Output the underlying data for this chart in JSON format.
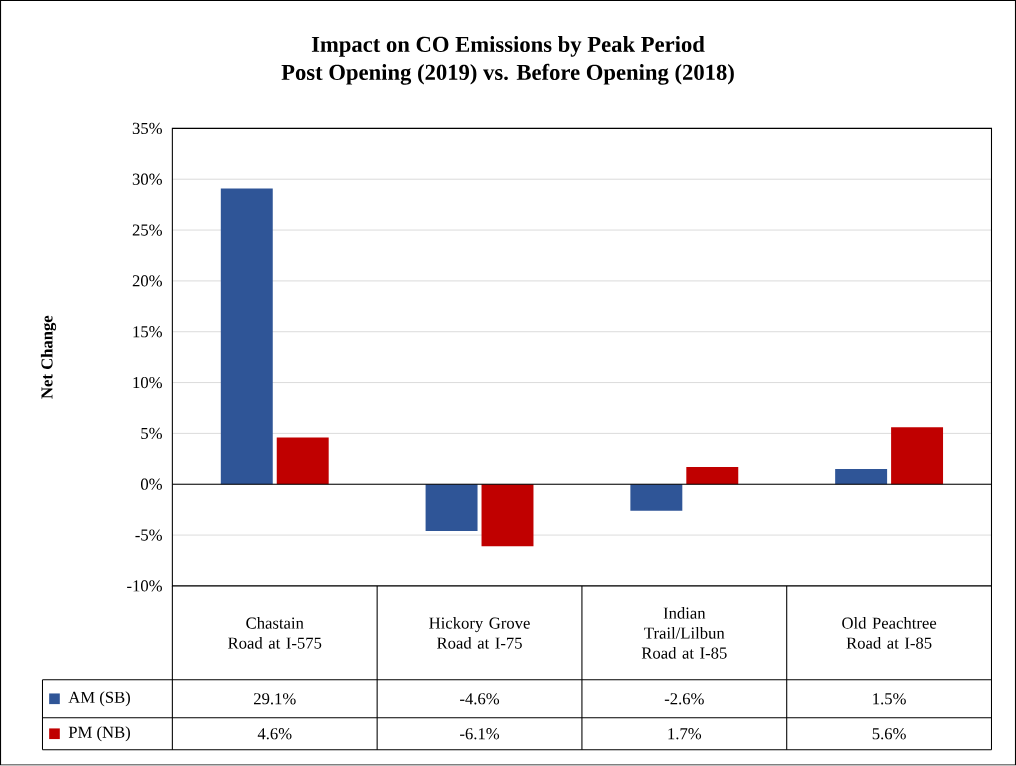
{
  "chart_data": {
    "type": "bar",
    "title": "Impact on CO Emissions by Peak Period",
    "subtitle": "Post Opening (2019) vs. Before Opening (2018)",
    "ylabel": "Net Change",
    "categories": [
      "Chastain Road at I-575",
      "Hickory Grove Road at I-75",
      "Indian Trail/Lilbun Road at I-85",
      "Old Peachtree Road at I-85"
    ],
    "series": [
      {
        "name": "AM (SB)",
        "color": "#2f5597",
        "values": [
          29.1,
          -4.6,
          -2.6,
          1.5
        ],
        "value_labels": [
          "29.1%",
          "-4.6%",
          "-2.6%",
          "1.5%"
        ]
      },
      {
        "name": "PM (NB)",
        "color": "#c00000",
        "values": [
          4.6,
          -6.1,
          1.7,
          5.6
        ],
        "value_labels": [
          "4.6%",
          "-6.1%",
          "1.7%",
          "5.6%"
        ]
      }
    ],
    "ylim": [
      -10,
      35
    ],
    "yticks": [
      {
        "value": -10,
        "label": "-10%"
      },
      {
        "value": -5,
        "label": "-5%"
      },
      {
        "value": 0,
        "label": "0%"
      },
      {
        "value": 5,
        "label": "5%"
      },
      {
        "value": 10,
        "label": "10%"
      },
      {
        "value": 15,
        "label": "15%"
      },
      {
        "value": 20,
        "label": "20%"
      },
      {
        "value": 25,
        "label": "25%"
      },
      {
        "value": 30,
        "label": "30%"
      },
      {
        "value": 35,
        "label": "35%"
      }
    ],
    "grid": "y",
    "legend": "bottom"
  }
}
